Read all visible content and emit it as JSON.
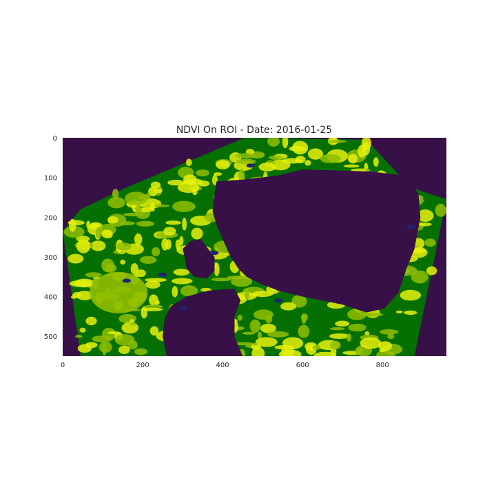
{
  "chart_data": {
    "type": "heatmap",
    "title": "NDVI On ROI - Date: 2016-01-25",
    "xlabel": "",
    "ylabel": "",
    "xlim": [
      0,
      960
    ],
    "ylim": [
      550,
      0
    ],
    "x_ticks": [
      0,
      200,
      400,
      600,
      800
    ],
    "y_ticks": [
      0,
      100,
      200,
      300,
      400,
      500
    ],
    "grid": false,
    "legend": "none",
    "colors": {
      "background": "#371047",
      "water": "#22207a",
      "vegetation_low": "#e6f00a",
      "vegetation_mid": "#8fbd00",
      "vegetation_high": "#057000"
    },
    "regions": [
      {
        "name": "outer_roi",
        "points": [
          [
            0,
            235
          ],
          [
            45,
            180
          ],
          [
            160,
            125
          ],
          [
            455,
            0
          ],
          [
            760,
            5
          ],
          [
            870,
            125
          ],
          [
            960,
            155
          ],
          [
            880,
            550
          ],
          [
            45,
            550
          ]
        ]
      },
      {
        "name": "central_bay",
        "points": [
          [
            385,
            110
          ],
          [
            455,
            105
          ],
          [
            540,
            95
          ],
          [
            600,
            80
          ],
          [
            770,
            85
          ],
          [
            855,
            95
          ],
          [
            890,
            140
          ],
          [
            895,
            200
          ],
          [
            880,
            280
          ],
          [
            860,
            330
          ],
          [
            840,
            390
          ],
          [
            805,
            430
          ],
          [
            760,
            440
          ],
          [
            700,
            420
          ],
          [
            600,
            400
          ],
          [
            540,
            385
          ],
          [
            500,
            370
          ],
          [
            460,
            350
          ],
          [
            440,
            330
          ],
          [
            420,
            300
          ],
          [
            400,
            255
          ],
          [
            385,
            220
          ],
          [
            375,
            185
          ],
          [
            380,
            140
          ]
        ]
      },
      {
        "name": "south_west_bay",
        "points": [
          [
            270,
            425
          ],
          [
            310,
            400
          ],
          [
            365,
            385
          ],
          [
            430,
            380
          ],
          [
            445,
            410
          ],
          [
            430,
            450
          ],
          [
            430,
            500
          ],
          [
            450,
            550
          ],
          [
            260,
            550
          ],
          [
            250,
            500
          ],
          [
            255,
            455
          ]
        ]
      },
      {
        "name": "west_lagoon",
        "points": [
          [
            300,
            280
          ],
          [
            320,
            260
          ],
          [
            345,
            255
          ],
          [
            360,
            275
          ],
          [
            380,
            300
          ],
          [
            380,
            335
          ],
          [
            360,
            355
          ],
          [
            330,
            350
          ],
          [
            310,
            330
          ],
          [
            305,
            300
          ]
        ]
      }
    ]
  }
}
